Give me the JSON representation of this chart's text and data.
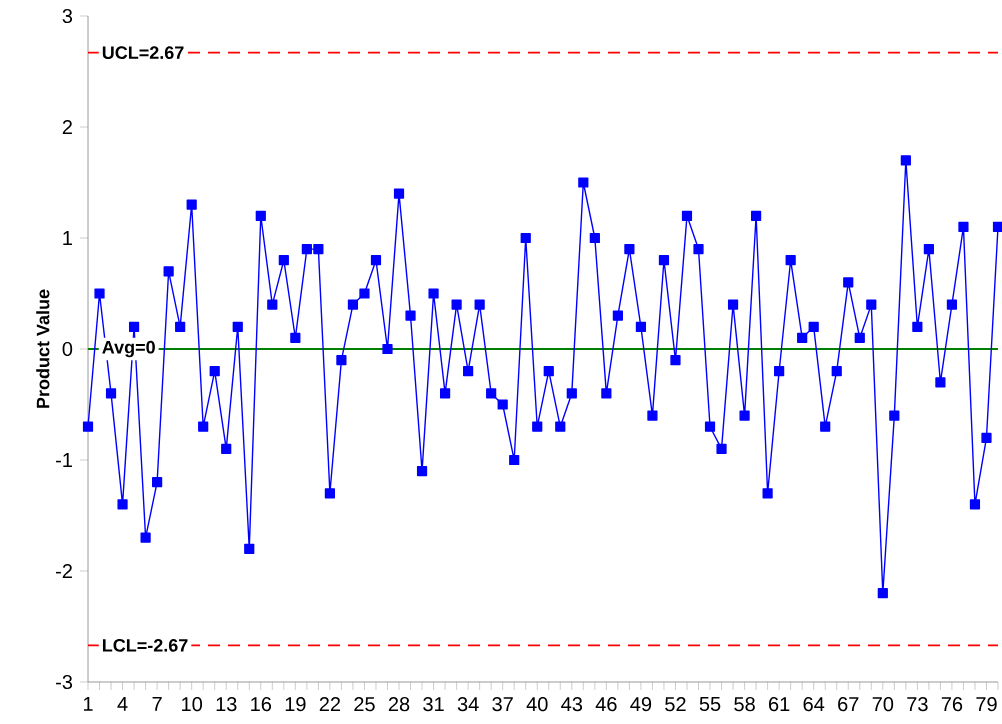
{
  "chart_data": {
    "type": "line",
    "ylabel": "Product Value",
    "x": [
      1,
      2,
      3,
      4,
      5,
      6,
      7,
      8,
      9,
      10,
      11,
      12,
      13,
      14,
      15,
      16,
      17,
      18,
      19,
      20,
      21,
      22,
      23,
      24,
      25,
      26,
      27,
      28,
      29,
      30,
      31,
      32,
      33,
      34,
      35,
      36,
      37,
      38,
      39,
      40,
      41,
      42,
      43,
      44,
      45,
      46,
      47,
      48,
      49,
      50,
      51,
      52,
      53,
      54,
      55,
      56,
      57,
      58,
      59,
      60,
      61,
      62,
      63,
      64,
      65,
      66,
      67,
      68,
      69,
      70,
      71,
      72,
      73,
      74,
      75,
      76,
      77,
      78,
      79,
      80
    ],
    "series": [
      {
        "color": "#0000ff",
        "values": [
          -0.7,
          0.5,
          -0.4,
          -1.4,
          0.2,
          -1.7,
          -1.2,
          0.7,
          0.2,
          1.3,
          -0.7,
          -0.2,
          -0.9,
          0.2,
          -1.8,
          1.2,
          0.4,
          0.8,
          0.1,
          0.9,
          0.9,
          -1.3,
          -0.1,
          0.4,
          0.5,
          0.8,
          0.0,
          1.4,
          0.3,
          -1.1,
          0.5,
          -0.4,
          0.4,
          -0.2,
          0.4,
          -0.4,
          -0.5,
          -1.0,
          1.0,
          -0.7,
          -0.2,
          -0.7,
          -0.4,
          1.5,
          1.0,
          -0.4,
          0.3,
          0.9,
          0.2,
          -0.6,
          0.8,
          -0.1,
          1.2,
          0.9,
          -0.7,
          -0.9,
          0.4,
          -0.6,
          1.2,
          -1.3,
          -0.2,
          0.8,
          0.1,
          0.2,
          -0.7,
          -0.2,
          0.6,
          0.1,
          0.4,
          -2.2,
          -0.6,
          1.7,
          0.2,
          0.9,
          -0.3,
          0.4,
          1.1,
          -1.4,
          -0.8,
          1.1
        ]
      }
    ],
    "xlim": [
      1,
      80
    ],
    "ylim": [
      -3,
      3
    ],
    "xticks": [
      1,
      {
        "value": 2,
        "label": null
      },
      {
        "value": 3,
        "label": null
      },
      4,
      {
        "value": 5,
        "label": null
      },
      {
        "value": 6,
        "label": null
      },
      7,
      {
        "value": 8,
        "label": null
      },
      {
        "value": 9,
        "label": null
      },
      10,
      {
        "value": 11,
        "label": null
      },
      {
        "value": 12,
        "label": null
      },
      13,
      {
        "value": 14,
        "label": null
      },
      {
        "value": 15,
        "label": null
      },
      16,
      {
        "value": 17,
        "label": null
      },
      {
        "value": 18,
        "label": null
      },
      19,
      {
        "value": 20,
        "label": null
      },
      {
        "value": 21,
        "label": null
      },
      22,
      {
        "value": 23,
        "label": null
      },
      {
        "value": 24,
        "label": null
      },
      25,
      {
        "value": 26,
        "label": null
      },
      {
        "value": 27,
        "label": null
      },
      28,
      {
        "value": 29,
        "label": null
      },
      {
        "value": 30,
        "label": null
      },
      31,
      {
        "value": 32,
        "label": null
      },
      {
        "value": 33,
        "label": null
      },
      34,
      {
        "value": 35,
        "label": null
      },
      {
        "value": 36,
        "label": null
      },
      37,
      {
        "value": 38,
        "label": null
      },
      {
        "value": 39,
        "label": null
      },
      40,
      {
        "value": 41,
        "label": null
      },
      {
        "value": 42,
        "label": null
      },
      43,
      {
        "value": 44,
        "label": null
      },
      {
        "value": 45,
        "label": null
      },
      46,
      {
        "value": 47,
        "label": null
      },
      {
        "value": 48,
        "label": null
      },
      49,
      {
        "value": 50,
        "label": null
      },
      {
        "value": 51,
        "label": null
      },
      52,
      {
        "value": 53,
        "label": null
      },
      {
        "value": 54,
        "label": null
      },
      55,
      {
        "value": 56,
        "label": null
      },
      {
        "value": 57,
        "label": null
      },
      58,
      {
        "value": 59,
        "label": null
      },
      {
        "value": 60,
        "label": null
      },
      61,
      {
        "value": 62,
        "label": null
      },
      {
        "value": 63,
        "label": null
      },
      64,
      {
        "value": 65,
        "label": null
      },
      {
        "value": 66,
        "label": null
      },
      67,
      {
        "value": 68,
        "label": null
      },
      {
        "value": 69,
        "label": null
      },
      70,
      {
        "value": 71,
        "label": null
      },
      {
        "value": 72,
        "label": null
      },
      73,
      {
        "value": 74,
        "label": null
      },
      {
        "value": 75,
        "label": null
      },
      76,
      {
        "value": 77,
        "label": null
      },
      {
        "value": 78,
        "label": null
      },
      79,
      {
        "value": 80,
        "label": null
      }
    ],
    "yticks": [
      -3,
      -2,
      -1,
      0,
      1,
      2,
      3
    ],
    "ref_lines": [
      {
        "axis": "y",
        "value": 2.67,
        "label": "UCL=2.67",
        "color": "#ff0000",
        "line_style": "dashed"
      },
      {
        "axis": "y",
        "value": 0,
        "label": "Avg=0",
        "color": "#008000",
        "line_style": "solid"
      },
      {
        "axis": "y",
        "value": -2.67,
        "label": "LCL=-2.67",
        "color": "#ff0000",
        "line_style": "dashed"
      }
    ],
    "marker": "square",
    "line_style": "solid",
    "grid": false
  }
}
